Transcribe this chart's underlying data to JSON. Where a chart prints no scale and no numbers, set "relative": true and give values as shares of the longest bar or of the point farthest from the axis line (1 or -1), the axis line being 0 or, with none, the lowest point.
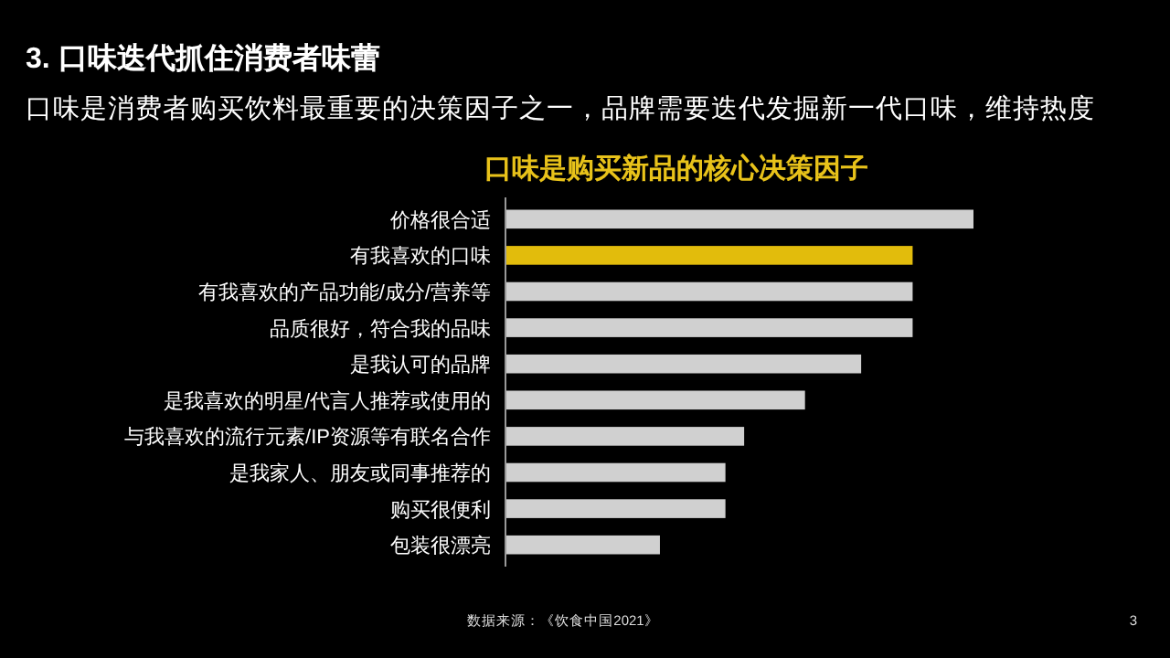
{
  "chart_data": {
    "type": "bar",
    "orientation": "horizontal",
    "relative": true,
    "title": "3. 口味迭代抓住消费者味蕾",
    "subtitle": "口味是消费者购买饮料最重要的决策因子之一，品牌需要迭代发掘新一代口味，维持热度",
    "annotations": [
      "口味是购买新品的核心决策因子",
      "数据来源：《饮食中国2021》",
      "3"
    ],
    "categories": [
      "价格很合适",
      "有我喜欢的口味",
      "有我喜欢的产品功能/成分/营养等",
      "品质很好，符合我的品味",
      "是我认可的品牌",
      "是我喜欢的明星/代言人推荐或使用的",
      "与我喜欢的流行元素/IP资源等有联名合作",
      "是我家人、朋友或同事推荐的",
      "购买很便利",
      "包装很漂亮"
    ],
    "values": [
      1,
      0.87,
      0.87,
      0.87,
      0.76,
      0.64,
      0.51,
      0.47,
      0.47,
      0.33
    ],
    "colors": [
      "#d0d0d0",
      "#e2bc0c",
      "#d0d0d0",
      "#d0d0d0",
      "#d0d0d0",
      "#d0d0d0",
      "#d0d0d0",
      "#d0d0d0",
      "#d0d0d0",
      "#d0d0d0"
    ]
  }
}
